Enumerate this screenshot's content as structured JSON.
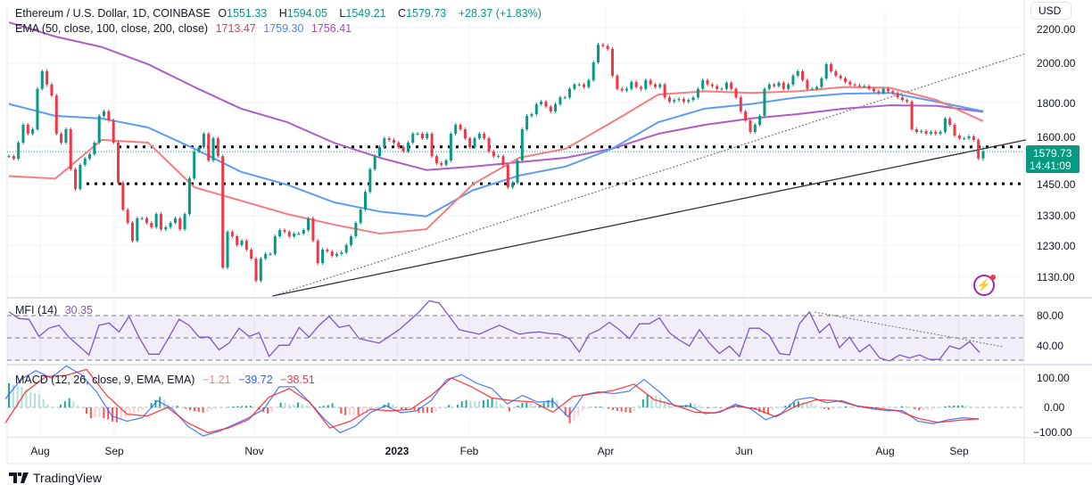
{
  "header": {
    "symbol": "Ethereum / U.S. Dollar, 1D, COINBASE",
    "o_label": "O",
    "o": "1551.33",
    "h_label": "H",
    "h": "1594.05",
    "l_label": "L",
    "l": "1549.21",
    "c_label": "C",
    "c": "1579.73",
    "change": "+28.37 (+1.83%)"
  },
  "ema_legend": {
    "label": "EMA (50, close, 100, close, 200, close)",
    "ema50": "1713.47",
    "ema100": "1759.30",
    "ema200": "1756.41"
  },
  "price_axis": {
    "currency": "USD",
    "ticks": [
      "2200.00",
      "2000.00",
      "1800.00",
      "1600.00",
      "1450.00",
      "1330.00",
      "1230.00",
      "1130.00"
    ],
    "last_price": "1579.73",
    "countdown": "14:41:09"
  },
  "time_axis": [
    "Aug",
    "Sep",
    "Nov",
    "2023",
    "Feb",
    "Apr",
    "Jun",
    "Aug",
    "Sep"
  ],
  "mfi": {
    "label": "MFI (14)",
    "value": "30.35",
    "ticks": [
      "80.00",
      "40.00"
    ]
  },
  "macd": {
    "label": "MACD (12, 26, close, 9, EMA, EMA)",
    "histogram": "−1.21",
    "macd": "−39.72",
    "signal": "−38.51",
    "ticks": [
      "100.00",
      "0.00",
      "−100.00"
    ]
  },
  "brand": "TradingView",
  "icons": {
    "alert": "lightning-icon",
    "logo": "tradingview-logo-icon"
  },
  "colors": {
    "up": "#089981",
    "down": "#f23645",
    "ema50": "#f77c80",
    "ema100": "#5b9cf6",
    "ema200": "#b05cc8",
    "mfi": "#7e57c2",
    "macd": "#2962ff",
    "signal": "#ff1e1e"
  },
  "chart_data": {
    "type": "candlestick",
    "scale": "log",
    "timeframe": "1D",
    "closes": [
      1561,
      1550,
      1618,
      1697,
      1657,
      1677,
      1868,
      1958,
      1890,
      1835,
      1657,
      1618,
      1677,
      1507,
      1430,
      1525,
      1550,
      1569,
      1618,
      1738,
      1759,
      1717,
      1618,
      1454,
      1353,
      1306,
      1245,
      1322,
      1322,
      1306,
      1291,
      1337,
      1284,
      1291,
      1306,
      1322,
      1284,
      1337,
      1471,
      1580,
      1599,
      1657,
      1543,
      1637,
      1561,
      1159,
      1275,
      1260,
      1231,
      1245,
      1216,
      1187,
      1119,
      1187,
      1202,
      1202,
      1260,
      1281,
      1275,
      1260,
      1269,
      1269,
      1281,
      1322,
      1245,
      1173,
      1216,
      1210,
      1196,
      1202,
      1207,
      1231,
      1260,
      1306,
      1353,
      1419,
      1507,
      1561,
      1599,
      1637,
      1630,
      1618,
      1599,
      1580,
      1618,
      1657,
      1657,
      1637,
      1657,
      1561,
      1532,
      1525,
      1543,
      1657,
      1697,
      1677,
      1637,
      1599,
      1637,
      1657,
      1637,
      1580,
      1561,
      1561,
      1525,
      1436,
      1454,
      1543,
      1677,
      1738,
      1746,
      1793,
      1805,
      1782,
      1759,
      1793,
      1826,
      1826,
      1868,
      1890,
      1890,
      1877,
      1912,
      2005,
      2102,
      2095,
      2078,
      1935,
      1868,
      1860,
      1868,
      1903,
      1877,
      1868,
      1912,
      1890,
      1877,
      1890,
      1826,
      1805,
      1813,
      1818,
      1805,
      1813,
      1826,
      1868,
      1912,
      1890,
      1882,
      1868,
      1868,
      1899,
      1868,
      1826,
      1759,
      1717,
      1665,
      1697,
      1738,
      1868,
      1890,
      1882,
      1899,
      1868,
      1890,
      1935,
      1958,
      1912,
      1868,
      1868,
      1877,
      1921,
      1995,
      1958,
      1935,
      1921,
      1903,
      1890,
      1886,
      1882,
      1882,
      1868,
      1856,
      1848,
      1868,
      1856,
      1848,
      1826,
      1813,
      1805,
      1677,
      1665,
      1669,
      1657,
      1665,
      1657,
      1665,
      1726,
      1697,
      1649,
      1637,
      1637,
      1645,
      1630,
      1551.33,
      1579.73
    ],
    "last_candle": {
      "open": 1551.33,
      "high": 1594.05,
      "low": 1549.21,
      "close": 1579.73
    },
    "ema50": [
      1480,
      1470,
      1630,
      1618,
      1436,
      1386,
      1337,
      1300,
      1269,
      1284,
      1448,
      1554,
      1592,
      1709,
      1840,
      1856,
      1848,
      1856,
      1877,
      1873,
      1813,
      1713.47
    ],
    "ema100": [
      1794,
      1738,
      1726,
      1685,
      1592,
      1497,
      1446,
      1380,
      1346,
      1329,
      1425,
      1482,
      1518,
      1592,
      1709,
      1772,
      1794,
      1826,
      1844,
      1848,
      1805,
      1759.3
    ],
    "ema200": [
      2231,
      2148,
      2089,
      1995,
      1877,
      1772,
      1709,
      1618,
      1554,
      1504,
      1518,
      1536,
      1554,
      1592,
      1657,
      1697,
      1726,
      1746,
      1772,
      1788,
      1785,
      1756.41
    ],
    "horizontal_levels": [
      1600,
      1450
    ],
    "trendline_solid": {
      "from": 1074,
      "to": 1630
    },
    "trendline_dotted": {
      "from": 1074,
      "to": 2053
    },
    "price_range": [
      1090,
      2250
    ],
    "mfi_values": [
      85,
      76,
      75,
      52,
      63,
      67,
      51,
      39,
      27,
      67,
      70,
      58,
      79,
      51,
      28,
      28,
      51,
      75,
      67,
      51,
      51,
      34,
      43,
      63,
      52,
      57,
      25,
      40,
      40,
      64,
      51,
      67,
      79,
      64,
      67,
      49,
      46,
      43,
      52,
      61,
      73,
      85,
      100,
      97,
      79,
      61,
      58,
      55,
      61,
      67,
      61,
      55,
      57,
      58,
      56,
      55,
      49,
      31,
      55,
      61,
      71,
      61,
      49,
      69,
      69,
      77,
      57,
      47,
      39,
      61,
      43,
      29,
      39,
      25,
      63,
      63,
      53,
      29,
      27,
      69,
      85,
      57,
      69,
      37,
      51,
      31,
      41,
      23,
      19,
      27,
      23,
      27,
      21,
      21,
      39,
      35,
      45,
      30.35
    ],
    "mfi_levels": [
      80,
      50,
      20
    ],
    "mfi_range": [
      0,
      100
    ],
    "macd_values": [
      29,
      94,
      125,
      100,
      141,
      111,
      53,
      -29,
      -47,
      -35,
      23,
      -6,
      -64,
      -97,
      -82,
      -59,
      -35,
      -6,
      70,
      70,
      18,
      -41,
      -86,
      -64,
      -18,
      6,
      -18,
      -12,
      23,
      94,
      111,
      82,
      64,
      12,
      41,
      18,
      21,
      -32,
      42,
      53,
      47,
      55,
      95,
      53,
      5,
      5,
      -21,
      -16,
      11,
      -5,
      -42,
      -21,
      26,
      34,
      16,
      23,
      5,
      -5,
      -11,
      -11,
      -47,
      -55,
      -42,
      -35,
      -39.72
    ],
    "signal_values": [
      -53,
      53,
      105,
      109,
      129,
      41,
      -23,
      -29,
      0,
      -53,
      -86,
      -70,
      -41,
      35,
      64,
      18,
      -70,
      -47,
      -6,
      -12,
      -6,
      41,
      100,
      70,
      32,
      23,
      19,
      -16,
      37,
      47,
      58,
      79,
      26,
      8,
      -16,
      -19,
      5,
      -5,
      -32,
      5,
      26,
      23,
      5,
      -3,
      -11,
      -37,
      -51,
      -44,
      -38.51
    ],
    "macd_range": [
      -100,
      120
    ],
    "grid": true
  }
}
